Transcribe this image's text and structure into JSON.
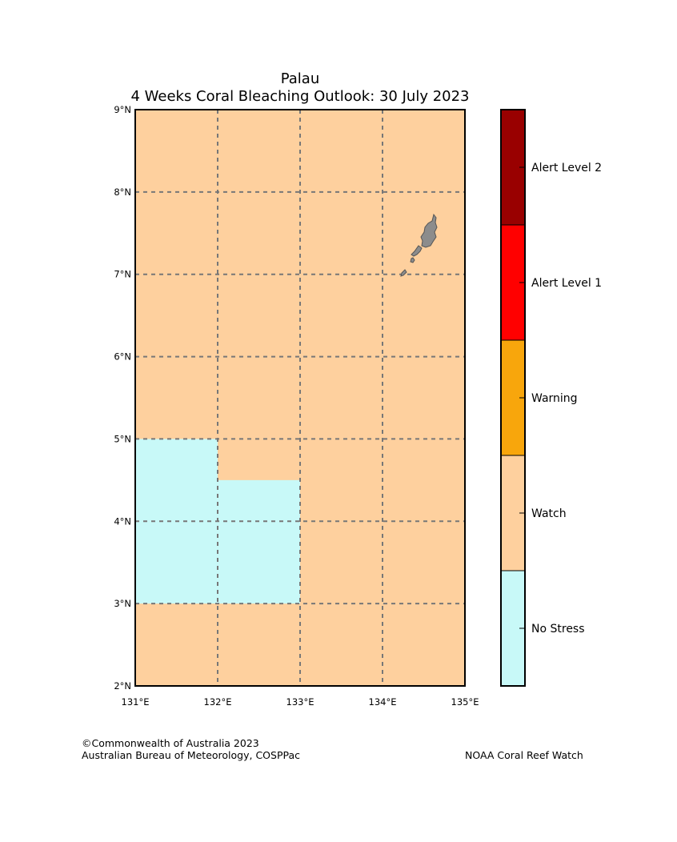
{
  "title": {
    "region": "Palau",
    "subtitle": "4 Weeks Coral Bleaching Outlook: 30 July 2023"
  },
  "map": {
    "lon_range": [
      131,
      135
    ],
    "lat_range": [
      2,
      9
    ],
    "lon_ticks": [
      {
        "value": 131,
        "label": "131°E"
      },
      {
        "value": 132,
        "label": "132°E"
      },
      {
        "value": 133,
        "label": "133°E"
      },
      {
        "value": 134,
        "label": "134°E"
      },
      {
        "value": 135,
        "label": "135°E"
      }
    ],
    "lat_ticks": [
      {
        "value": 2,
        "label": "2°N"
      },
      {
        "value": 3,
        "label": "3°N"
      },
      {
        "value": 4,
        "label": "4°N"
      },
      {
        "value": 5,
        "label": "5°N"
      },
      {
        "value": 6,
        "label": "6°N"
      },
      {
        "value": 7,
        "label": "7°N"
      },
      {
        "value": 8,
        "label": "8°N"
      },
      {
        "value": 9,
        "label": "9°N"
      }
    ],
    "background_category": "Watch",
    "no_stress_cells": [
      {
        "lon_min": 131,
        "lon_max": 132,
        "lat_min": 3,
        "lat_max": 5
      },
      {
        "lon_min": 132,
        "lon_max": 133,
        "lat_min": 3,
        "lat_max": 4.5
      }
    ],
    "land_color": "#8c8c8c",
    "grid_color": "#777777"
  },
  "legend": {
    "categories": [
      {
        "label": "Alert Level 2",
        "color": "#990000"
      },
      {
        "label": "Alert Level 1",
        "color": "#ff0000"
      },
      {
        "label": "Warning",
        "color": "#f8a60c"
      },
      {
        "label": "Watch",
        "color": "#fed09e"
      },
      {
        "label": "No Stress",
        "color": "#c8f9f8"
      }
    ]
  },
  "credits": {
    "copyright": "©Commonwealth of Australia 2023",
    "agency": "Australian Bureau of Meteorology, COSPPac",
    "partner": "NOAA Coral Reef Watch"
  }
}
